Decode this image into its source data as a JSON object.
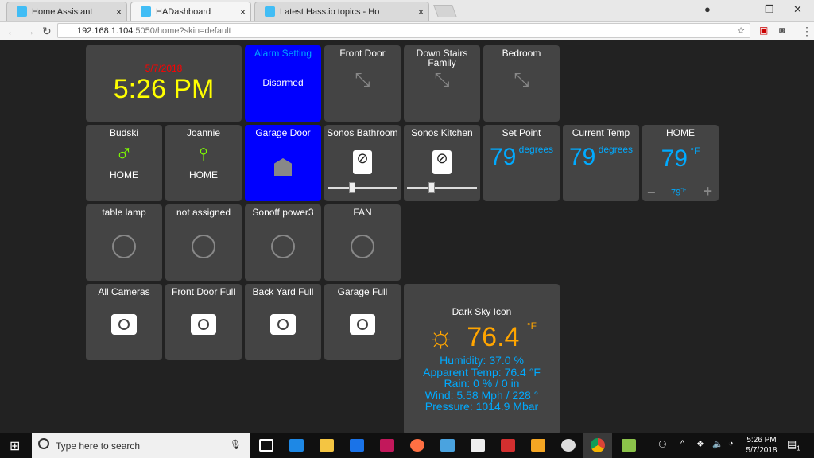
{
  "browser": {
    "tabs": [
      {
        "label": "Home Assistant"
      },
      {
        "label": "HADashboard"
      },
      {
        "label": "Latest Hass.io topics - Ho"
      }
    ],
    "url_host": "192.168.1.104",
    "url_rest": ":5050/home?skin=default"
  },
  "clock": {
    "date": "5/7/2018",
    "time": "5:26 PM"
  },
  "alarm": {
    "title": "Alarm Setting",
    "state": "Disarmed"
  },
  "sensors": [
    {
      "title": "Front Door"
    },
    {
      "title": "Down Stairs Family"
    },
    {
      "title": "Bedroom"
    }
  ],
  "people": [
    {
      "title": "Budski",
      "state": "HOME"
    },
    {
      "title": "Joannie",
      "state": "HOME"
    }
  ],
  "garage": {
    "title": "Garage Door"
  },
  "sonos": [
    {
      "title": "Sonos Bathroom",
      "volume": 35
    },
    {
      "title": "Sonos Kitchen",
      "volume": 35
    }
  ],
  "set_point": {
    "title": "Set Point",
    "value": "79",
    "unit": "degrees"
  },
  "current_temp": {
    "title": "Current Temp",
    "value": "79",
    "unit": "degrees"
  },
  "climate": {
    "title": "HOME",
    "value": "79",
    "unit": "°F",
    "set": "79",
    "set_unit": "°F",
    "minus": "−",
    "plus": "+"
  },
  "switches": [
    {
      "title": "table lamp"
    },
    {
      "title": "not assigned"
    },
    {
      "title": "Sonoff power3"
    },
    {
      "title": "FAN"
    }
  ],
  "cameras": [
    {
      "title": "All Cameras"
    },
    {
      "title": "Front Door Full"
    },
    {
      "title": "Back Yard Full"
    },
    {
      "title": "Garage Full"
    }
  ],
  "weather": {
    "title": "Dark Sky Icon",
    "temp": "76.4",
    "unit": "°F",
    "humidity": "Humidity:  37.0 %",
    "apparent": "Apparent Temp:  76.4 °F",
    "rain": "Rain:  0  %  /  0 in",
    "wind": "Wind:  5.58  Mph  /  228  °",
    "pressure": "Pressure:  1014.9  Mbar"
  },
  "taskbar": {
    "search_placeholder": "Type here to search",
    "time": "5:26 PM",
    "date": "5/7/2018",
    "notifications": "1"
  },
  "colors": {
    "accent": "#00aaff",
    "alarm_bg": "#0000ff",
    "clock_date": "#ff0000",
    "clock_time": "#ffff00",
    "weather": "#ffa500"
  }
}
